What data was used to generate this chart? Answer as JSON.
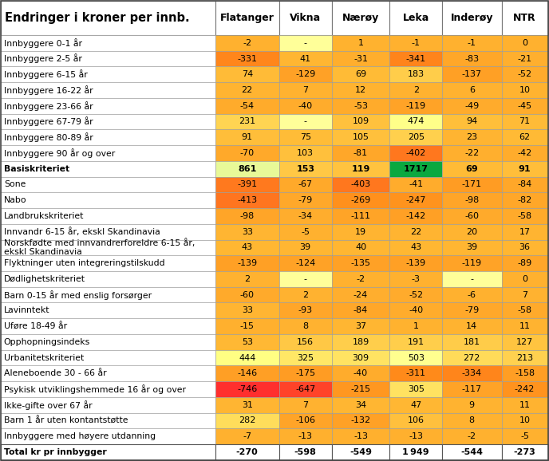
{
  "title": "Endringer i kroner per innb.",
  "columns": [
    "Flatanger",
    "Vikna",
    "Nærøy",
    "Leka",
    "Inderøy",
    "NTR"
  ],
  "rows": [
    {
      "label": "Innbyggere 0-1 år",
      "values": [
        -2,
        null,
        1,
        -1,
        -1,
        0
      ]
    },
    {
      "label": "Innbyggere 2-5 år",
      "values": [
        -331,
        41,
        -31,
        -341,
        -83,
        -21
      ]
    },
    {
      "label": "Innbyggere 6-15 år",
      "values": [
        74,
        -129,
        69,
        183,
        -137,
        -52
      ]
    },
    {
      "label": "Innbyggere 16-22 år",
      "values": [
        22,
        7,
        12,
        2,
        6,
        10
      ]
    },
    {
      "label": "Innbyggere 23-66 år",
      "values": [
        -54,
        -40,
        -53,
        -119,
        -49,
        -45
      ]
    },
    {
      "label": "Innbyggere 67-79 år",
      "values": [
        231,
        null,
        109,
        474,
        94,
        71
      ]
    },
    {
      "label": "Innbyggere 80-89 år",
      "values": [
        91,
        75,
        105,
        205,
        23,
        62
      ]
    },
    {
      "label": "Innbyggere 90 år og over",
      "values": [
        -70,
        103,
        -81,
        -402,
        -22,
        -42
      ]
    },
    {
      "label": "Basiskriteriet",
      "values": [
        861,
        153,
        119,
        1717,
        69,
        91
      ],
      "bold": true
    },
    {
      "label": "Sone",
      "values": [
        -391,
        -67,
        -403,
        -41,
        -171,
        -84
      ]
    },
    {
      "label": "Nabo",
      "values": [
        -413,
        -79,
        -269,
        -247,
        -98,
        -82
      ]
    },
    {
      "label": "Landbrukskriteriet",
      "values": [
        -98,
        -34,
        -111,
        -142,
        -60,
        -58
      ]
    },
    {
      "label": "Innvandr 6-15 år, ekskl Skandinavia",
      "values": [
        33,
        -5,
        19,
        22,
        20,
        17
      ]
    },
    {
      "label": "Norskfødte med innvandrerforeldre 6-15 år,\nekskl Skandinavia",
      "values": [
        43,
        39,
        40,
        43,
        39,
        36
      ]
    },
    {
      "label": "Flyktninger uten integreringstilskudd",
      "values": [
        -139,
        -124,
        -135,
        -139,
        -119,
        -89
      ]
    },
    {
      "label": "Dødlighetskriteriet",
      "values": [
        2,
        null,
        -2,
        -3,
        null,
        0
      ]
    },
    {
      "label": "Barn 0-15 år med enslig forsørger",
      "values": [
        -60,
        2,
        -24,
        -52,
        -6,
        7
      ]
    },
    {
      "label": "Lavinntekt",
      "values": [
        33,
        -93,
        -84,
        -40,
        -79,
        -58
      ]
    },
    {
      "label": "Uføre 18-49 år",
      "values": [
        -15,
        8,
        37,
        1,
        14,
        11
      ]
    },
    {
      "label": "Opphopningsindeks",
      "values": [
        53,
        156,
        189,
        191,
        181,
        127
      ]
    },
    {
      "label": "Urbanitetskriteriet",
      "values": [
        444,
        325,
        309,
        503,
        272,
        213
      ]
    },
    {
      "label": "Aleneboende 30 - 66 år",
      "values": [
        -146,
        -175,
        -40,
        -311,
        -334,
        -158
      ]
    },
    {
      "label": "Psykisk utviklingshemmede 16 år og over",
      "values": [
        -746,
        -647,
        -215,
        305,
        -117,
        -242
      ]
    },
    {
      "label": "Ikke-gifte over 67 år",
      "values": [
        31,
        7,
        34,
        47,
        9,
        11
      ]
    },
    {
      "label": "Barn 1 år uten kontantstøtte",
      "values": [
        282,
        -106,
        -132,
        106,
        8,
        10
      ]
    },
    {
      "label": "Innbyggere med høyere utdanning",
      "values": [
        -7,
        -13,
        -13,
        -13,
        -2,
        -5
      ]
    },
    {
      "label": "Total kr pr innbygger",
      "values": [
        -270,
        -598,
        -549,
        1949,
        -544,
        -273
      ],
      "bold": true,
      "total": true
    }
  ],
  "vmin": -750,
  "vmax": 1750,
  "title_fontsize": 10.5,
  "cell_fontsize": 8.0,
  "header_fontsize": 9.0,
  "label_fontsize": 7.8
}
